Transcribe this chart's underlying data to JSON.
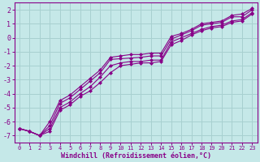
{
  "title": "",
  "xlabel": "Windchill (Refroidissement éolien,°C)",
  "ylabel": "",
  "bg_color": "#c5e8e8",
  "grid_color": "#a8d0d0",
  "line_color": "#880088",
  "xlim": [
    -0.5,
    23.5
  ],
  "ylim": [
    -7.5,
    2.5
  ],
  "xticks": [
    0,
    1,
    2,
    3,
    4,
    5,
    6,
    7,
    8,
    9,
    10,
    11,
    12,
    13,
    14,
    15,
    16,
    17,
    18,
    19,
    20,
    21,
    22,
    23
  ],
  "yticks": [
    -7,
    -6,
    -5,
    -4,
    -3,
    -2,
    -1,
    0,
    1,
    2
  ],
  "series": [
    [
      0,
      -6.5,
      1,
      -6.7,
      2,
      -7.0,
      3,
      -6.3,
      4,
      -4.7,
      5,
      -4.3,
      6,
      -3.7,
      7,
      -3.1,
      8,
      -2.5,
      9,
      -1.55,
      10,
      -1.5,
      11,
      -1.45,
      12,
      -1.4,
      13,
      -1.3,
      14,
      -1.3,
      15,
      -0.1,
      16,
      0.2,
      17,
      0.5,
      18,
      0.9,
      19,
      1.0,
      20,
      1.1,
      21,
      1.5,
      22,
      1.5,
      23,
      2.0
    ],
    [
      0,
      -6.5,
      1,
      -6.7,
      2,
      -7.0,
      3,
      -6.5,
      4,
      -5.0,
      5,
      -4.6,
      6,
      -4.0,
      7,
      -3.5,
      8,
      -2.8,
      9,
      -2.0,
      10,
      -1.8,
      11,
      -1.7,
      12,
      -1.7,
      13,
      -1.6,
      14,
      -1.6,
      15,
      -0.3,
      16,
      0.0,
      17,
      0.3,
      18,
      0.6,
      19,
      0.8,
      20,
      0.9,
      21,
      1.2,
      22,
      1.3,
      23,
      1.8
    ],
    [
      0,
      -6.5,
      1,
      -6.7,
      2,
      -7.0,
      3,
      -6.0,
      4,
      -4.5,
      5,
      -4.1,
      6,
      -3.5,
      7,
      -2.9,
      8,
      -2.3,
      9,
      -1.4,
      10,
      -1.3,
      11,
      -1.2,
      12,
      -1.2,
      13,
      -1.1,
      14,
      -1.1,
      15,
      0.1,
      16,
      0.3,
      17,
      0.6,
      18,
      1.0,
      19,
      1.1,
      20,
      1.2,
      21,
      1.6,
      22,
      1.7,
      23,
      2.1
    ],
    [
      0,
      -6.5,
      1,
      -6.7,
      2,
      -7.0,
      3,
      -6.7,
      4,
      -5.2,
      5,
      -4.8,
      6,
      -4.2,
      7,
      -3.8,
      8,
      -3.2,
      9,
      -2.5,
      10,
      -2.0,
      11,
      -1.9,
      12,
      -1.8,
      13,
      -1.8,
      14,
      -1.7,
      15,
      -0.5,
      16,
      -0.2,
      17,
      0.2,
      18,
      0.5,
      19,
      0.7,
      20,
      0.8,
      21,
      1.1,
      22,
      1.2,
      23,
      1.7
    ]
  ]
}
